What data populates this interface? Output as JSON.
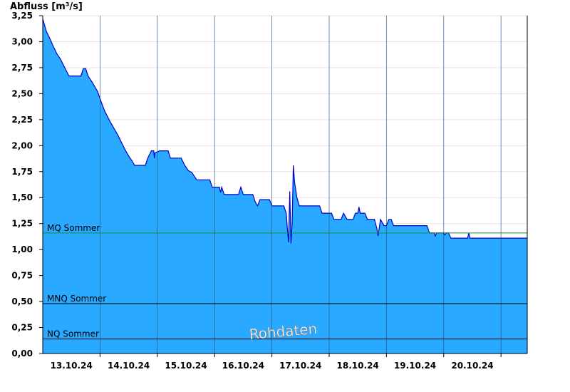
{
  "chart_data": {
    "type": "area",
    "ylabel": "Abfluss [m³/s]",
    "ylim": [
      0,
      3.25
    ],
    "yticks": [
      "0,00",
      "0,25",
      "0,50",
      "0,75",
      "1,00",
      "1,25",
      "1,50",
      "1,75",
      "2,00",
      "2,25",
      "2,50",
      "2,75",
      "3,00",
      "3,25"
    ],
    "xlim": [
      "2024-10-12T12:00",
      "2024-10-20T23:00"
    ],
    "xticks": [
      {
        "label": "13.10.24",
        "x": "2024-10-13T00:00"
      },
      {
        "label": "14.10.24",
        "x": "2024-10-14T00:00"
      },
      {
        "label": "15.10.24",
        "x": "2024-10-15T00:00"
      },
      {
        "label": "16.10.24",
        "x": "2024-10-16T00:00"
      },
      {
        "label": "17.10.24",
        "x": "2024-10-17T00:00"
      },
      {
        "label": "18.10.24",
        "x": "2024-10-18T00:00"
      },
      {
        "label": "19.10.24",
        "x": "2024-10-19T00:00"
      },
      {
        "label": "20.10.24",
        "x": "2024-10-20T00:00"
      }
    ],
    "day_dividers": [
      "2024-10-13T12:00",
      "2024-10-14T12:00",
      "2024-10-15T12:00",
      "2024-10-16T12:00",
      "2024-10-17T12:00",
      "2024-10-18T12:00",
      "2024-10-19T12:00",
      "2024-10-20T12:00"
    ],
    "series": [
      {
        "fill_color": "#29a9ff",
        "line_color": "#0000c8",
        "points": [
          [
            "2024-10-12T12:00",
            3.22
          ],
          [
            "2024-10-12T12:30",
            3.18
          ],
          [
            "2024-10-12T13:30",
            3.1
          ],
          [
            "2024-10-12T15:00",
            3.03
          ],
          [
            "2024-10-12T16:30",
            2.95
          ],
          [
            "2024-10-12T18:00",
            2.88
          ],
          [
            "2024-10-12T19:30",
            2.83
          ],
          [
            "2024-10-12T21:00",
            2.76
          ],
          [
            "2024-10-12T23:00",
            2.67
          ],
          [
            "2024-10-13T04:00",
            2.67
          ],
          [
            "2024-10-13T05:00",
            2.74
          ],
          [
            "2024-10-13T06:00",
            2.74
          ],
          [
            "2024-10-13T07:00",
            2.67
          ],
          [
            "2024-10-13T09:00",
            2.6
          ],
          [
            "2024-10-13T11:00",
            2.52
          ],
          [
            "2024-10-13T12:30",
            2.42
          ],
          [
            "2024-10-13T14:00",
            2.33
          ],
          [
            "2024-10-13T16:00",
            2.24
          ],
          [
            "2024-10-13T18:00",
            2.16
          ],
          [
            "2024-10-13T19:30",
            2.1
          ],
          [
            "2024-10-13T21:00",
            2.03
          ],
          [
            "2024-10-13T22:30",
            1.96
          ],
          [
            "2024-10-14T00:00",
            1.9
          ],
          [
            "2024-10-14T01:30",
            1.85
          ],
          [
            "2024-10-14T02:30",
            1.81
          ],
          [
            "2024-10-14T07:00",
            1.81
          ],
          [
            "2024-10-14T08:00",
            1.88
          ],
          [
            "2024-10-14T09:30",
            1.95
          ],
          [
            "2024-10-14T10:30",
            1.95
          ],
          [
            "2024-10-14T10:45",
            1.88
          ],
          [
            "2024-10-14T11:00",
            1.93
          ],
          [
            "2024-10-14T13:00",
            1.95
          ],
          [
            "2024-10-14T16:30",
            1.95
          ],
          [
            "2024-10-14T17:30",
            1.88
          ],
          [
            "2024-10-14T22:00",
            1.88
          ],
          [
            "2024-10-14T23:30",
            1.81
          ],
          [
            "2024-10-15T01:00",
            1.76
          ],
          [
            "2024-10-15T02:30",
            1.74
          ],
          [
            "2024-10-15T04:30",
            1.67
          ],
          [
            "2024-10-15T10:00",
            1.67
          ],
          [
            "2024-10-15T11:00",
            1.6
          ],
          [
            "2024-10-15T14:00",
            1.6
          ],
          [
            "2024-10-15T14:30",
            1.55
          ],
          [
            "2024-10-15T15:00",
            1.6
          ],
          [
            "2024-10-15T16:00",
            1.53
          ],
          [
            "2024-10-15T22:00",
            1.53
          ],
          [
            "2024-10-15T23:00",
            1.6
          ],
          [
            "2024-10-16T00:00",
            1.53
          ],
          [
            "2024-10-16T04:00",
            1.53
          ],
          [
            "2024-10-16T05:00",
            1.46
          ],
          [
            "2024-10-16T06:00",
            1.42
          ],
          [
            "2024-10-16T07:00",
            1.48
          ],
          [
            "2024-10-16T11:00",
            1.48
          ],
          [
            "2024-10-16T12:00",
            1.42
          ],
          [
            "2024-10-16T17:00",
            1.42
          ],
          [
            "2024-10-16T18:00",
            1.35
          ],
          [
            "2024-10-16T18:30",
            1.2
          ],
          [
            "2024-10-16T19:00",
            1.07
          ],
          [
            "2024-10-16T19:30",
            1.56
          ],
          [
            "2024-10-16T20:00",
            1.06
          ],
          [
            "2024-10-16T20:30",
            1.25
          ],
          [
            "2024-10-16T21:00",
            1.81
          ],
          [
            "2024-10-16T21:30",
            1.65
          ],
          [
            "2024-10-16T22:30",
            1.5
          ],
          [
            "2024-10-16T23:30",
            1.42
          ],
          [
            "2024-10-17T08:00",
            1.42
          ],
          [
            "2024-10-17T09:00",
            1.35
          ],
          [
            "2024-10-17T13:00",
            1.35
          ],
          [
            "2024-10-17T14:00",
            1.29
          ],
          [
            "2024-10-17T17:00",
            1.29
          ],
          [
            "2024-10-17T18:00",
            1.35
          ],
          [
            "2024-10-17T19:30",
            1.29
          ],
          [
            "2024-10-17T22:00",
            1.29
          ],
          [
            "2024-10-17T23:00",
            1.35
          ],
          [
            "2024-10-18T00:00",
            1.35
          ],
          [
            "2024-10-18T00:30",
            1.41
          ],
          [
            "2024-10-18T01:00",
            1.35
          ],
          [
            "2024-10-18T03:00",
            1.35
          ],
          [
            "2024-10-18T04:00",
            1.29
          ],
          [
            "2024-10-18T07:00",
            1.29
          ],
          [
            "2024-10-18T08:00",
            1.2
          ],
          [
            "2024-10-18T08:30",
            1.13
          ],
          [
            "2024-10-18T09:30",
            1.29
          ],
          [
            "2024-10-18T11:00",
            1.23
          ],
          [
            "2024-10-18T12:00",
            1.23
          ],
          [
            "2024-10-18T13:00",
            1.29
          ],
          [
            "2024-10-18T14:00",
            1.29
          ],
          [
            "2024-10-18T15:00",
            1.23
          ],
          [
            "2024-10-19T05:00",
            1.23
          ],
          [
            "2024-10-19T06:00",
            1.16
          ],
          [
            "2024-10-19T08:00",
            1.16
          ],
          [
            "2024-10-19T08:30",
            1.13
          ],
          [
            "2024-10-19T09:00",
            1.16
          ],
          [
            "2024-10-19T12:00",
            1.16
          ],
          [
            "2024-10-19T12:30",
            1.14
          ],
          [
            "2024-10-19T13:00",
            1.16
          ],
          [
            "2024-10-19T14:00",
            1.16
          ],
          [
            "2024-10-19T15:00",
            1.11
          ],
          [
            "2024-10-19T22:00",
            1.11
          ],
          [
            "2024-10-19T22:30",
            1.16
          ],
          [
            "2024-10-19T23:00",
            1.11
          ],
          [
            "2024-10-20T23:00",
            1.11
          ]
        ]
      }
    ],
    "reference_lines": [
      {
        "label": "MQ Sommer",
        "value": 1.16,
        "color": "#1a8a3a"
      },
      {
        "label": "MNQ Sommer",
        "value": 0.48,
        "color": "#000000"
      },
      {
        "label": "NQ Sommer",
        "value": 0.14,
        "color": "#000000"
      }
    ],
    "watermark": "Rohdaten",
    "grid": true
  }
}
